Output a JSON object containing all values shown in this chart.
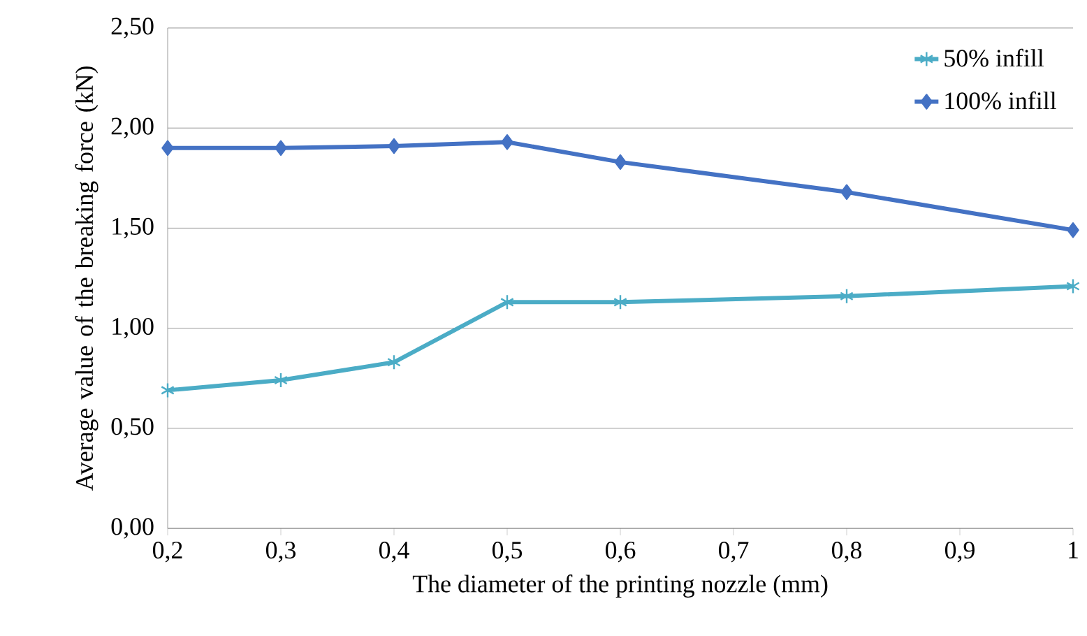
{
  "chart_data": {
    "type": "line",
    "xlabel": "The diameter of the printing nozzle (mm)",
    "ylabel": "Average value of the breaking force (kN)",
    "x": [
      0.2,
      0.3,
      0.4,
      0.5,
      0.6,
      0.8,
      1.0
    ],
    "series": [
      {
        "name": "50% infill",
        "color": "#4bacc6",
        "marker": "cross",
        "values": [
          0.69,
          0.74,
          0.83,
          1.13,
          1.13,
          1.16,
          1.21
        ]
      },
      {
        "name": "100% infill",
        "color": "#4472c4",
        "marker": "diamond",
        "values": [
          1.9,
          1.9,
          1.91,
          1.93,
          1.83,
          1.68,
          1.49
        ]
      }
    ],
    "xlim": [
      0.2,
      1.0
    ],
    "ylim": [
      0,
      2.5
    ],
    "xticks": [
      {
        "value": 0.2,
        "label": "0,2"
      },
      {
        "value": 0.3,
        "label": "0,3"
      },
      {
        "value": 0.4,
        "label": "0,4"
      },
      {
        "value": 0.5,
        "label": "0,5"
      },
      {
        "value": 0.6,
        "label": "0,6"
      },
      {
        "value": 0.7,
        "label": "0,7"
      },
      {
        "value": 0.8,
        "label": "0,8"
      },
      {
        "value": 0.9,
        "label": "0,9"
      },
      1
    ],
    "yticks": [
      {
        "value": 0,
        "label": "0,00"
      },
      {
        "value": 0.5,
        "label": "0,50"
      },
      {
        "value": 1.0,
        "label": "1,00"
      },
      {
        "value": 1.5,
        "label": "1,50"
      },
      {
        "value": 2.0,
        "label": "2,00"
      },
      {
        "value": 2.5,
        "label": "2,50"
      }
    ],
    "grid": "y",
    "legend": "top right",
    "line_style": "solid"
  }
}
